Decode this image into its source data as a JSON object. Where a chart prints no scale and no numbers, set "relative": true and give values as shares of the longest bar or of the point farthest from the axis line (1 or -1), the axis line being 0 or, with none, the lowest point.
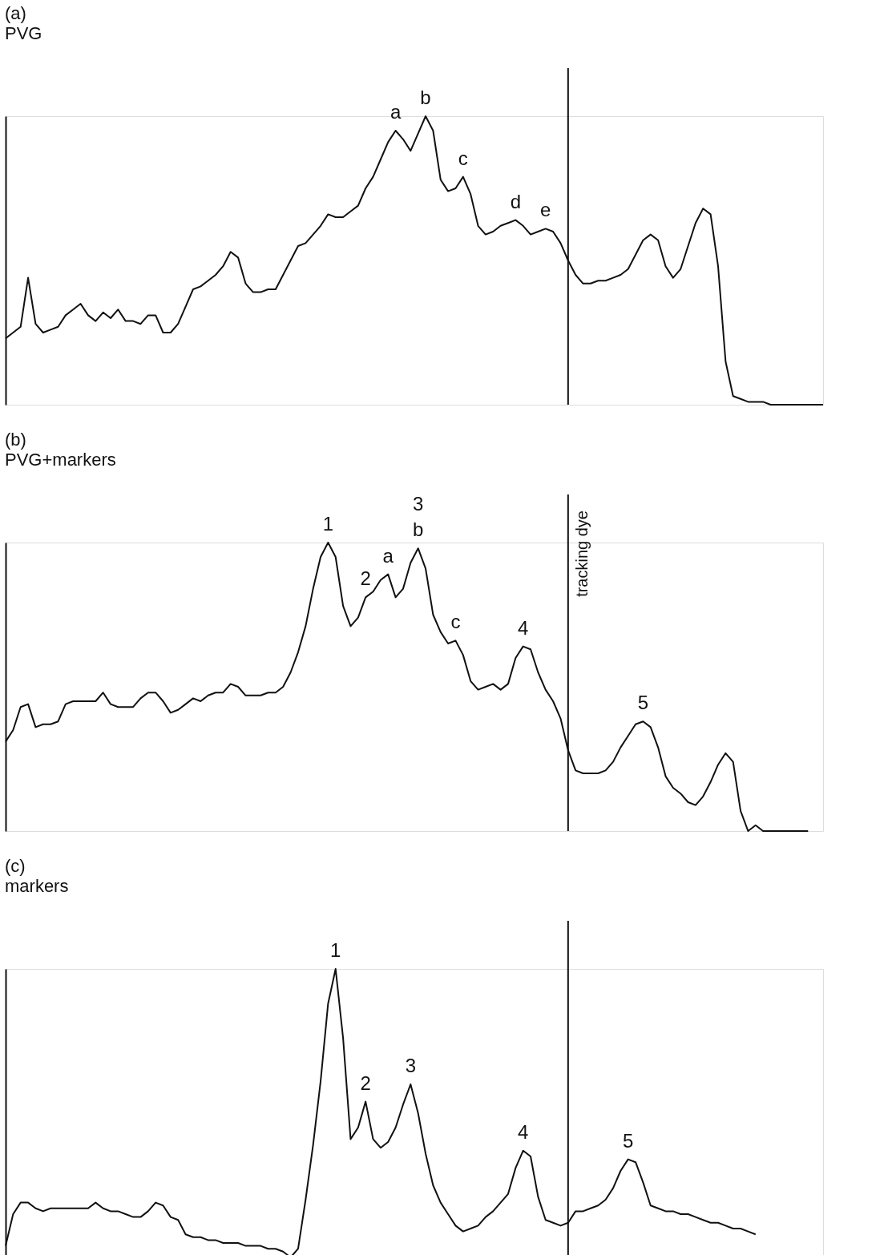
{
  "chart_data": [
    {
      "type": "line",
      "title": "(a)",
      "subtitle": "PVG",
      "relative": true,
      "tick_labels": false,
      "categories": [
        null,
        null,
        null,
        null,
        null,
        null,
        null,
        null,
        null,
        null,
        null,
        null,
        null,
        null,
        null,
        null,
        null,
        null,
        null,
        null,
        null,
        null,
        null,
        null,
        null,
        null,
        null,
        null,
        null,
        null,
        null,
        null,
        null,
        null,
        null,
        null,
        null,
        null,
        null,
        null,
        null,
        null,
        null,
        null,
        null,
        null,
        null,
        null,
        null,
        null,
        null,
        null,
        null,
        null,
        null,
        null,
        null,
        null,
        null,
        null,
        null,
        null,
        null,
        null,
        null,
        null,
        null,
        null,
        null,
        null,
        null,
        null,
        null,
        null,
        null,
        null,
        null,
        null,
        null,
        null,
        null,
        null,
        null,
        null,
        null,
        null,
        null,
        null,
        null,
        null,
        null,
        null,
        null,
        null,
        null,
        null,
        null,
        null,
        null,
        null,
        null,
        null,
        null,
        null,
        null,
        null,
        null,
        null,
        null,
        null
      ],
      "series": [
        {
          "color": "#111111",
          "values": [
            0.23,
            0.25,
            0.27,
            0.44,
            0.28,
            0.25,
            0.26,
            0.27,
            0.31,
            0.33,
            0.35,
            0.31,
            0.29,
            0.32,
            0.3,
            0.33,
            0.29,
            0.29,
            0.28,
            0.31,
            0.31,
            0.25,
            0.25,
            0.28,
            0.34,
            0.4,
            0.41,
            0.43,
            0.45,
            0.48,
            0.53,
            0.51,
            0.42,
            0.39,
            0.39,
            0.4,
            0.4,
            0.45,
            0.5,
            0.55,
            0.56,
            0.59,
            0.62,
            0.66,
            0.65,
            0.65,
            0.67,
            0.69,
            0.75,
            0.79,
            0.85,
            0.91,
            0.95,
            0.92,
            0.88,
            0.94,
            1,
            0.95,
            0.78,
            0.74,
            0.75,
            0.79,
            0.73,
            0.62,
            0.59,
            0.6,
            0.62,
            0.63,
            0.64,
            0.62,
            0.59,
            0.6,
            0.61,
            0.6,
            0.56,
            0.5,
            0.45,
            0.42,
            0.42,
            0.43,
            0.43,
            0.44,
            0.45,
            0.47,
            0.52,
            0.57,
            0.59,
            0.57,
            0.48,
            0.44,
            0.47,
            0.55,
            0.63,
            0.68,
            0.66,
            0.48,
            0.15,
            0.03,
            0.02,
            0.01,
            0.01,
            0.01,
            0,
            0,
            0,
            0,
            0,
            0,
            0,
            0
          ],
          "line_style": "solid"
        }
      ],
      "annotations": [
        {
          "text": "a",
          "y": 0.95
        },
        {
          "text": "b",
          "y": 1
        },
        {
          "text": "c",
          "y": 0.79
        },
        {
          "text": "d",
          "y": 0.64
        },
        {
          "text": "e",
          "y": 0.61
        }
      ]
    },
    {
      "type": "line",
      "title": "(b)",
      "subtitle": "PVG+markers",
      "relative": true,
      "tick_labels": false,
      "categories": [
        null,
        null,
        null,
        null,
        null,
        null,
        null,
        null,
        null,
        null,
        null,
        null,
        null,
        null,
        null,
        null,
        null,
        null,
        null,
        null,
        null,
        null,
        null,
        null,
        null,
        null,
        null,
        null,
        null,
        null,
        null,
        null,
        null,
        null,
        null,
        null,
        null,
        null,
        null,
        null,
        null,
        null,
        null,
        null,
        null,
        null,
        null,
        null,
        null,
        null,
        null,
        null,
        null,
        null,
        null,
        null,
        null,
        null,
        null,
        null,
        null,
        null,
        null,
        null,
        null,
        null,
        null,
        null,
        null,
        null,
        null,
        null,
        null,
        null,
        null,
        null,
        null,
        null,
        null,
        null,
        null,
        null,
        null,
        null,
        null,
        null,
        null,
        null,
        null,
        null,
        null,
        null,
        null,
        null,
        null,
        null,
        null,
        null,
        null,
        null,
        null,
        null,
        null,
        null,
        null,
        null,
        null,
        null,
        null,
        null
      ],
      "series": [
        {
          "color": "#111111",
          "values": [
            0.31,
            0.35,
            0.43,
            0.44,
            0.36,
            0.37,
            0.37,
            0.38,
            0.44,
            0.45,
            0.45,
            0.45,
            0.45,
            0.48,
            0.44,
            0.43,
            0.43,
            0.43,
            0.46,
            0.48,
            0.48,
            0.45,
            0.41,
            0.42,
            0.44,
            0.46,
            0.45,
            0.47,
            0.48,
            0.48,
            0.51,
            0.5,
            0.47,
            0.47,
            0.47,
            0.48,
            0.48,
            0.5,
            0.55,
            0.62,
            0.71,
            0.84,
            0.95,
            1,
            0.95,
            0.78,
            0.71,
            0.74,
            0.81,
            0.83,
            0.87,
            0.89,
            0.81,
            0.84,
            0.93,
            0.98,
            0.91,
            0.75,
            0.69,
            0.65,
            0.66,
            0.61,
            0.52,
            0.49,
            0.5,
            0.51,
            0.49,
            0.51,
            0.6,
            0.64,
            0.63,
            0.55,
            0.49,
            0.45,
            0.39,
            0.28,
            0.21,
            0.2,
            0.2,
            0.2,
            0.21,
            0.24,
            0.29,
            0.33,
            0.37,
            0.38,
            0.36,
            0.29,
            0.19,
            0.15,
            0.13,
            0.1,
            0.09,
            0.12,
            0.17,
            0.23,
            0.27,
            0.24,
            0.07,
            0,
            0.02,
            0,
            0,
            0,
            0,
            0,
            0,
            0,
            null,
            null
          ],
          "line_style": "solid"
        }
      ],
      "annotations": [
        {
          "text": "1",
          "y": 1
        },
        {
          "text": "2",
          "y": 0.81
        },
        {
          "text": "a",
          "y": 0.89
        },
        {
          "text": "b",
          "y": 0.98
        },
        {
          "text": "3",
          "y": 0.98
        },
        {
          "text": "c",
          "y": 0.66
        },
        {
          "text": "4",
          "y": 0.64
        },
        {
          "text": "5",
          "y": 0.38
        },
        "tracking dye"
      ]
    },
    {
      "type": "line",
      "title": "(c)",
      "subtitle": "markers",
      "relative": true,
      "tick_labels": false,
      "categories": [
        null,
        null,
        null,
        null,
        null,
        null,
        null,
        null,
        null,
        null,
        null,
        null,
        null,
        null,
        null,
        null,
        null,
        null,
        null,
        null,
        null,
        null,
        null,
        null,
        null,
        null,
        null,
        null,
        null,
        null,
        null,
        null,
        null,
        null,
        null,
        null,
        null,
        null,
        null,
        null,
        null,
        null,
        null,
        null,
        null,
        null,
        null,
        null,
        null,
        null,
        null,
        null,
        null,
        null,
        null,
        null,
        null,
        null,
        null,
        null,
        null,
        null,
        null,
        null,
        null,
        null,
        null,
        null,
        null,
        null,
        null,
        null,
        null,
        null,
        null,
        null,
        null,
        null,
        null,
        null,
        null,
        null,
        null,
        null,
        null,
        null,
        null,
        null,
        null,
        null,
        null,
        null,
        null,
        null,
        null,
        null,
        null,
        null,
        null,
        null,
        null,
        null,
        null,
        null,
        null,
        null,
        null,
        null,
        null,
        null
      ],
      "series": [
        {
          "color": "#111111",
          "values": [
            0.04,
            0.15,
            0.19,
            0.19,
            0.17,
            0.16,
            0.17,
            0.17,
            0.17,
            0.17,
            0.17,
            0.17,
            0.19,
            0.17,
            0.16,
            0.16,
            0.15,
            0.14,
            0.14,
            0.16,
            0.19,
            0.18,
            0.14,
            0.13,
            0.08,
            0.07,
            0.07,
            0.06,
            0.06,
            0.05,
            0.05,
            0.05,
            0.04,
            0.04,
            0.04,
            0.03,
            0.03,
            0.02,
            0,
            0.03,
            0.2,
            0.39,
            0.61,
            0.88,
            1,
            0.76,
            0.41,
            0.45,
            0.54,
            0.41,
            0.38,
            0.4,
            0.45,
            0.53,
            0.6,
            0.5,
            0.36,
            0.25,
            0.19,
            0.15,
            0.11,
            0.09,
            0.1,
            0.11,
            0.14,
            0.16,
            0.19,
            0.22,
            0.31,
            0.37,
            0.35,
            0.21,
            0.13,
            0.12,
            0.11,
            0.12,
            0.16,
            0.16,
            0.17,
            0.18,
            0.2,
            0.24,
            0.3,
            0.34,
            0.33,
            0.26,
            0.18,
            0.17,
            0.16,
            0.16,
            0.15,
            0.15,
            0.14,
            0.13,
            0.12,
            0.12,
            0.11,
            0.1,
            0.1,
            0.09,
            0.08,
            null,
            null,
            null,
            null,
            null,
            null,
            null,
            null,
            null
          ],
          "line_style": "solid"
        }
      ],
      "annotations": [
        {
          "text": "1",
          "y": 1
        },
        {
          "text": "2",
          "y": 0.54
        },
        {
          "text": "3",
          "y": 0.6
        },
        {
          "text": "4",
          "y": 0.37
        },
        {
          "text": "5",
          "y": 0.34
        }
      ]
    }
  ]
}
